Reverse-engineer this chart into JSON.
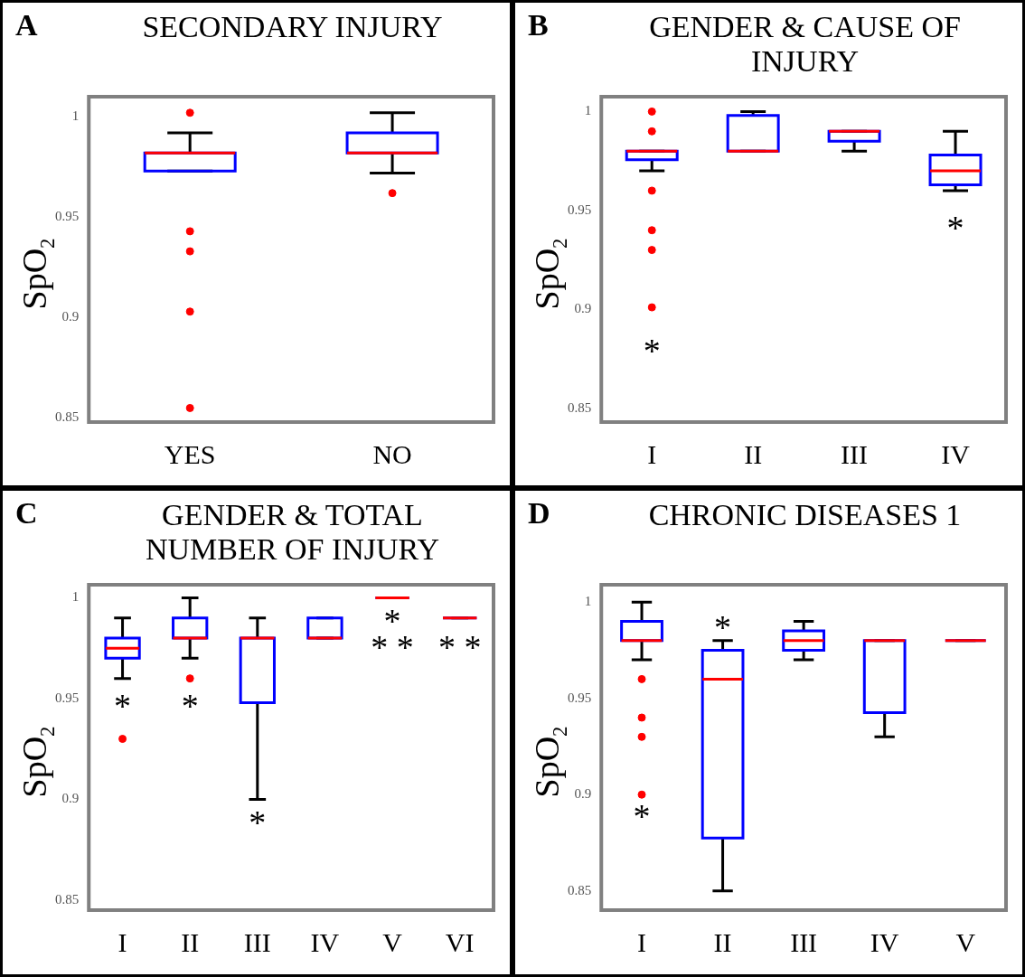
{
  "chart_data": [
    {
      "type": "box",
      "title": "SECONDARY INJURY",
      "ylabel": "SpO$_{2}$",
      "categories": [
        "YES",
        "NO"
      ],
      "color": "#0000ff",
      "ylim": [
        0.848,
        1.01
      ],
      "yticks": [
        0.85,
        0.9,
        0.95,
        1
      ],
      "boxes": [
        {
          "low": 0.973,
          "q1": 0.973,
          "median": 0.982,
          "q3": 0.982,
          "high": 0.992,
          "outliers": [
            1.002,
            0.943,
            0.933,
            0.903,
            0.855
          ]
        },
        {
          "low": 0.972,
          "q1": 0.982,
          "median": 0.982,
          "q3": 0.992,
          "high": 1.002,
          "outliers": [
            0.962
          ]
        }
      ],
      "annotations": [
        "A"
      ]
    },
    {
      "type": "box",
      "title": "GENDER & CAUSE OF INJURY",
      "ylabel": "SpO$_{2}$",
      "categories": [
        "I",
        "II",
        "III",
        "IV"
      ],
      "color": "#0000ff",
      "ylim": [
        0.843,
        1.0075
      ],
      "yticks": [
        0.85,
        0.9,
        0.95,
        1
      ],
      "boxes": [
        {
          "low": 0.97,
          "q1": 0.9756,
          "median": 0.98,
          "q3": 0.98,
          "high": 0.98,
          "outliers": [
            1.0,
            0.99,
            0.96,
            0.94,
            0.93,
            0.901
          ]
        },
        {
          "low": 0.98,
          "q1": 0.98,
          "median": 0.98,
          "q3": 0.998,
          "high": 1.0
        },
        {
          "low": 0.98,
          "q1": 0.985,
          "median": 0.99,
          "q3": 0.99,
          "high": 0.99
        },
        {
          "low": 0.96,
          "q1": 0.963,
          "median": 0.97,
          "q3": 0.978,
          "high": 0.99
        }
      ],
      "annotations": [
        "B",
        "*",
        "*"
      ]
    },
    {
      "type": "box",
      "title": "GENDER & TOTAL NUMBER OF INJURY",
      "ylabel": "SpO$_{2}$",
      "categories": [
        "I",
        "II",
        "III",
        "IV",
        "V",
        "VI"
      ],
      "color": "#0000ff",
      "ylim": [
        0.845,
        1.0065
      ],
      "yticks": [
        0.85,
        0.9,
        0.95,
        1
      ],
      "boxes": [
        {
          "low": 0.96,
          "q1": 0.97,
          "median": 0.975,
          "q3": 0.98,
          "high": 0.99,
          "outliers": [
            0.93
          ]
        },
        {
          "low": 0.97,
          "q1": 0.98,
          "median": 0.98,
          "q3": 0.99,
          "high": 1.0,
          "outliers": [
            0.96
          ]
        },
        {
          "low": 0.9,
          "q1": 0.948,
          "median": 0.98,
          "q3": 0.98,
          "high": 0.99
        },
        {
          "low": 0.98,
          "q1": 0.98,
          "median": 0.98,
          "q3": 0.99,
          "high": 0.99
        },
        {
          "low": 1.0,
          "q1": 1.0,
          "median": 1.0,
          "q3": 1.0,
          "high": 1.0
        },
        {
          "low": 0.99,
          "q1": 0.99,
          "median": 0.99,
          "q3": 0.99,
          "high": 0.99
        }
      ],
      "annotations": [
        "C",
        "*",
        "*",
        "*",
        "*",
        "* *",
        "* *"
      ]
    },
    {
      "type": "box",
      "title": "CHRONIC DISEASES 1",
      "ylabel": "SpO$_{2}$",
      "categories": [
        "I",
        "II",
        "III",
        "IV",
        "V"
      ],
      "color": "#0000ff",
      "ylim": [
        0.84,
        1.009
      ],
      "yticks": [
        0.85,
        0.9,
        0.95,
        1
      ],
      "boxes": [
        {
          "low": 0.97,
          "q1": 0.98,
          "median": 0.98,
          "q3": 0.99,
          "high": 1.0,
          "outliers": [
            0.96,
            0.94,
            0.93,
            0.9
          ]
        },
        {
          "low": 0.85,
          "q1": 0.8774,
          "median": 0.96,
          "q3": 0.975,
          "high": 0.98
        },
        {
          "low": 0.97,
          "q1": 0.975,
          "median": 0.98,
          "q3": 0.985,
          "high": 0.99
        },
        {
          "low": 0.93,
          "q1": 0.9426,
          "median": 0.98,
          "q3": 0.98,
          "high": 0.98
        },
        {
          "low": 0.98,
          "q1": 0.98,
          "median": 0.98,
          "q3": 0.98,
          "high": 0.98
        }
      ],
      "annotations": [
        "D",
        "*",
        "*"
      ]
    }
  ]
}
